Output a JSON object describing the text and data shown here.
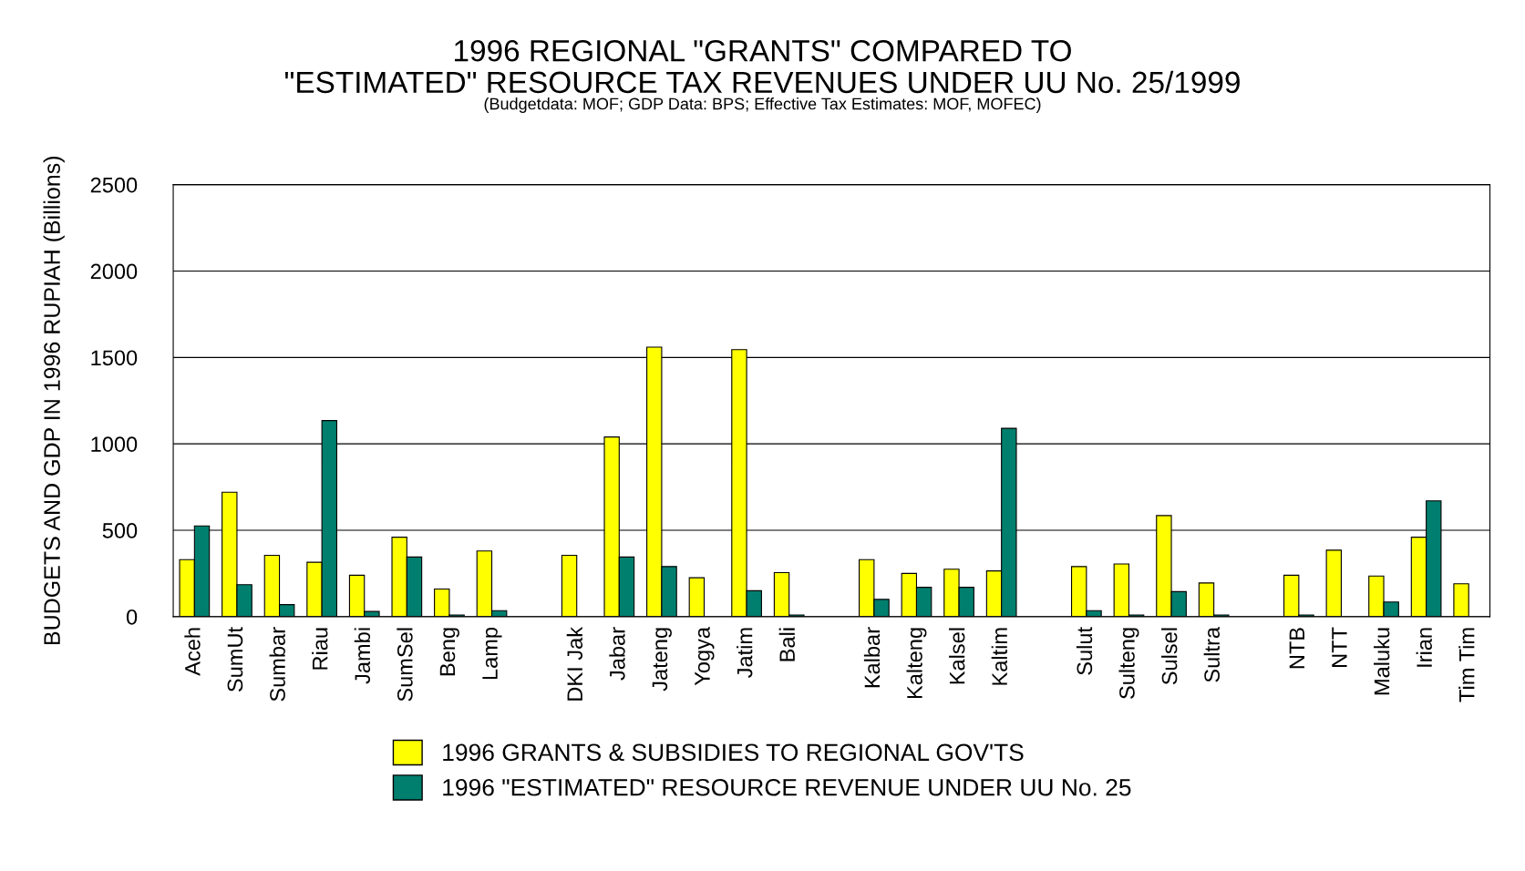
{
  "chart_data": {
    "type": "bar",
    "title": "1996 REGIONAL \"GRANTS\" COMPARED TO\n\"ESTIMATED\" RESOURCE TAX REVENUES UNDER UU No. 25/1999",
    "subtitle": "(Budgetdata: MOF; GDP Data: BPS; Effective Tax Estimates: MOF, MOFEC)",
    "ylabel": "BUDGETS AND GDP IN 1996 RUPIAH (Billions)",
    "categories": [
      "Aceh",
      "SumUt",
      "Sumbar",
      "Riau",
      "Jambi",
      "SumSel",
      "Beng",
      "Lamp",
      null,
      "DKI Jak",
      "Jabar",
      "Jateng",
      "Yogya",
      "Jatim",
      "Bali",
      null,
      "Kalbar",
      "Kalteng",
      "Kalsel",
      "Kaltim",
      null,
      "Sulut",
      "Sulteng",
      "Sulsel",
      "Sultra",
      null,
      "NTB",
      "NTT",
      "Maluku",
      "Irian",
      "Tim Tim"
    ],
    "series": [
      {
        "name": "1996 GRANTS & SUBSIDIES TO REGIONAL GOV'TS",
        "color": "#ffff00",
        "values": [
          330,
          720,
          355,
          315,
          240,
          460,
          160,
          380,
          null,
          355,
          1040,
          1560,
          225,
          1545,
          255,
          null,
          330,
          250,
          275,
          265,
          null,
          290,
          305,
          585,
          195,
          null,
          240,
          385,
          235,
          460,
          190
        ]
      },
      {
        "name": "1996 \"ESTIMATED\" RESOURCE REVENUE UNDER UU No. 25",
        "color": "#007f6e",
        "values": [
          525,
          185,
          70,
          1135,
          30,
          345,
          10,
          35,
          null,
          null,
          345,
          290,
          null,
          150,
          10,
          null,
          100,
          170,
          170,
          1090,
          null,
          35,
          10,
          145,
          10,
          null,
          10,
          null,
          85,
          670,
          null
        ]
      }
    ],
    "ylim": [
      0,
      2500
    ],
    "yticks": [
      0,
      500,
      1000,
      1500,
      2000,
      2500
    ],
    "grid": "y",
    "legend": "bottom"
  }
}
